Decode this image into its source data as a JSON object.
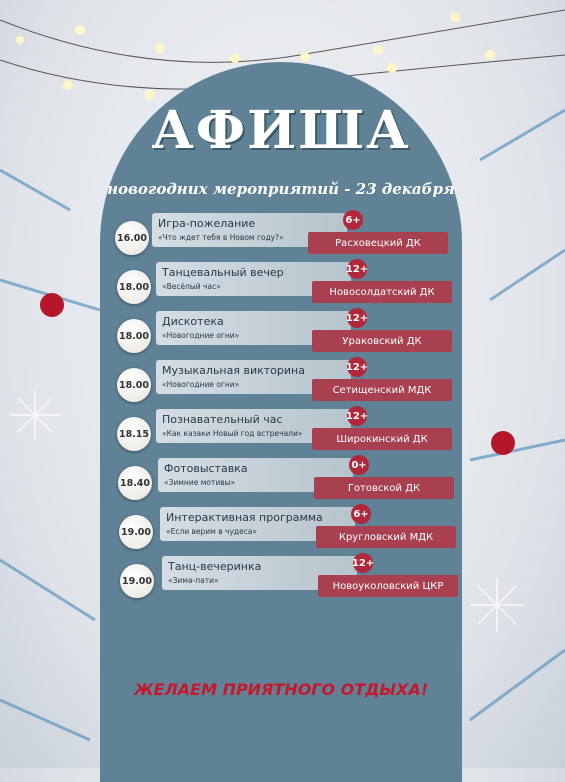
{
  "header": {
    "title": "АФИША",
    "subtitle": "новогодних мероприятий - 23 декабря"
  },
  "events": [
    {
      "time": "16.00",
      "title": "Игра-пожелание",
      "subtitle": "«Что ждет тебя в Новом году?»",
      "age": "6+",
      "venue": "Расховецкий ДК"
    },
    {
      "time": "18.00",
      "title": "Танцевальный вечер",
      "subtitle": "«Весёлый час»",
      "age": "12+",
      "venue": "Новосолдатский ДК"
    },
    {
      "time": "18.00",
      "title": "Дискотека",
      "subtitle": "«Новогодние огни»",
      "age": "12+",
      "venue": "Ураковский ДК"
    },
    {
      "time": "18.00",
      "title": "Музыкальная викторина",
      "subtitle": "«Новогодние огни»",
      "age": "12+",
      "venue": "Сетищенский МДК"
    },
    {
      "time": "18.15",
      "title": "Познавательный час",
      "subtitle": "«Как казаки Новый год встречали»",
      "age": "12+",
      "venue": "Широкинский ДК"
    },
    {
      "time": "18.40",
      "title": "Фотовыставка",
      "subtitle": "«Зимние мотивы»",
      "age": "0+",
      "venue": "Готовской ДК"
    },
    {
      "time": "19.00",
      "title": "Интерактивная программа",
      "subtitle": "«Если верим в чудеса»",
      "age": "6+",
      "venue": "Кругловский МДК"
    },
    {
      "time": "19.00",
      "title": "Танц-вечеринка",
      "subtitle": "«Зима-пати»",
      "age": "12+",
      "venue": "Новоуколовский ЦКР"
    }
  ],
  "footer": {
    "wish": "ЖЕЛАЕМ ПРИЯТНОГО ОТДЫХА!"
  }
}
